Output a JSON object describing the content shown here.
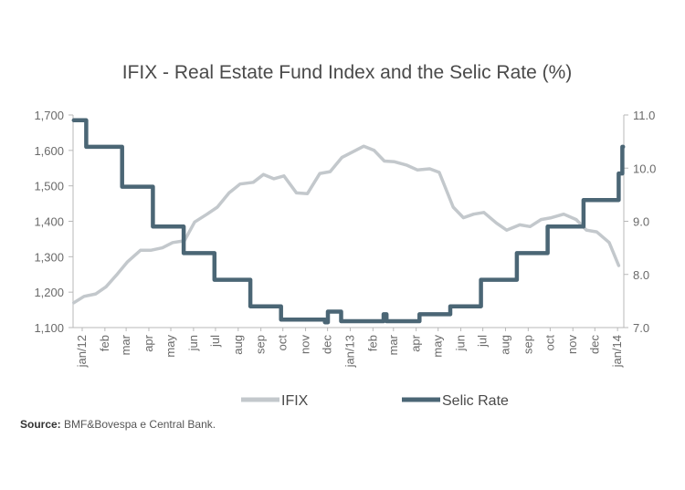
{
  "chart_data": {
    "type": "line",
    "title": "IFIX - Real Estate Fund Index and the Selic Rate (%)",
    "x_tick_labels": [
      "jan/12",
      "feb",
      "mar",
      "apr",
      "may",
      "jun",
      "jul",
      "aug",
      "sep",
      "oct",
      "nov",
      "dec",
      "jan/13",
      "feb",
      "mar",
      "apr",
      "may",
      "jun",
      "jul",
      "aug",
      "sep",
      "oct",
      "nov",
      "dec",
      "jan/14"
    ],
    "y_left": {
      "ylim": [
        1100,
        1700
      ],
      "ticks": [
        "1,100",
        "1,200",
        "1,300",
        "1,400",
        "1,500",
        "1,600",
        "1,700"
      ]
    },
    "y_right": {
      "ylim": [
        7.0,
        11.0
      ],
      "ticks": [
        "7.0",
        "8.0",
        "9.0",
        "10.0",
        "11.0"
      ]
    },
    "grid": false,
    "legend_position": "bottom",
    "series": [
      {
        "name": "IFIX",
        "axis": "left",
        "color": "#c3c8cc",
        "x": [
          "2012-01-02",
          "2012-01-16",
          "2012-02-01",
          "2012-02-15",
          "2012-03-01",
          "2012-03-15",
          "2012-04-02",
          "2012-04-16",
          "2012-05-02",
          "2012-05-16",
          "2012-06-01",
          "2012-06-15",
          "2012-07-02",
          "2012-07-16",
          "2012-08-01",
          "2012-08-16",
          "2012-09-03",
          "2012-09-17",
          "2012-10-01",
          "2012-10-15",
          "2012-11-01",
          "2012-11-16",
          "2012-12-03",
          "2012-12-17",
          "2013-01-02",
          "2013-01-16",
          "2013-02-01",
          "2013-02-15",
          "2013-03-01",
          "2013-03-15",
          "2013-04-01",
          "2013-04-15",
          "2013-05-02",
          "2013-05-15",
          "2013-06-03",
          "2013-06-17",
          "2013-07-01",
          "2013-07-15",
          "2013-08-01",
          "2013-08-15",
          "2013-09-02",
          "2013-09-16",
          "2013-10-01",
          "2013-10-15",
          "2013-11-01",
          "2013-11-18",
          "2013-12-02",
          "2013-12-16",
          "2014-01-02",
          "2014-01-15"
        ],
        "values": [
          1170,
          1188,
          1195,
          1215,
          1250,
          1285,
          1318,
          1318,
          1325,
          1340,
          1345,
          1398,
          1420,
          1440,
          1480,
          1505,
          1510,
          1532,
          1520,
          1528,
          1480,
          1478,
          1535,
          1540,
          1580,
          1595,
          1612,
          1600,
          1570,
          1568,
          1558,
          1545,
          1548,
          1538,
          1440,
          1410,
          1420,
          1425,
          1395,
          1375,
          1390,
          1385,
          1405,
          1410,
          1420,
          1405,
          1375,
          1370,
          1340,
          1275
        ]
      },
      {
        "name": "Selic Rate",
        "axis": "right",
        "color": "#4b6675",
        "x": [
          "2012-01-02",
          "2012-01-19",
          "2012-03-08",
          "2012-04-19",
          "2012-05-31",
          "2012-07-12",
          "2012-08-30",
          "2012-10-11",
          "2012-12-10",
          "2012-12-14",
          "2013-01-01",
          "2013-02-28",
          "2013-03-04",
          "2013-04-18",
          "2013-05-30",
          "2013-07-11",
          "2013-08-29",
          "2013-10-10",
          "2013-11-28",
          "2014-01-15",
          "2014-01-20"
        ],
        "values": [
          10.9,
          10.4,
          9.65,
          8.9,
          8.4,
          7.9,
          7.4,
          7.15,
          7.1,
          7.3,
          7.12,
          7.25,
          7.12,
          7.25,
          7.4,
          7.9,
          8.4,
          8.9,
          9.4,
          9.9,
          10.4
        ]
      }
    ]
  },
  "legend": {
    "items": [
      "IFIX",
      "Selic Rate"
    ]
  },
  "source": {
    "label": "Source:",
    "text": "BMF&Bovespa e Central Bank."
  }
}
